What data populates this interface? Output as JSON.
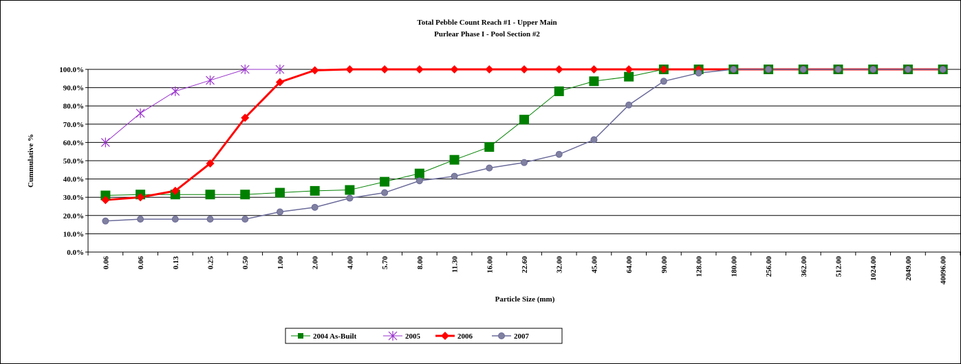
{
  "chart_data": {
    "type": "line",
    "title": "Total Pebble Count Reach #1 - Upper Main",
    "subtitle": "Purlear Phase I - Pool  Section #2",
    "x_label": "Particle Size (mm)",
    "y_label": "Cummulative %",
    "categories": [
      "0.06",
      "0.06",
      "0.13",
      "0.25",
      "0.50",
      "1.00",
      "2.00",
      "4.00",
      "5.70",
      "8.00",
      "11.30",
      "16.00",
      "22.60",
      "32.00",
      "45.00",
      "64.00",
      "90.00",
      "128.00",
      "180.00",
      "256.00",
      "362.00",
      "512.00",
      "1024.00",
      "2049.00",
      "40096.00"
    ],
    "series": [
      {
        "name": "2004 As-Built",
        "color": "#008000",
        "marker": "square",
        "values": [
          31,
          31.5,
          31.5,
          31.5,
          31.5,
          32.5,
          33.5,
          34,
          38.5,
          43,
          50.5,
          57.5,
          72.5,
          88,
          93.5,
          96,
          100,
          100,
          100,
          100,
          100,
          100,
          100,
          100,
          100
        ]
      },
      {
        "name": "2005",
        "color": "#9932cc",
        "marker": "star",
        "values": [
          60,
          76,
          88,
          94,
          100,
          100,
          null,
          null,
          null,
          null,
          null,
          null,
          null,
          null,
          null,
          null,
          null,
          null,
          null,
          null,
          null,
          null,
          null,
          null,
          null
        ]
      },
      {
        "name": "2006",
        "color": "#ff0000",
        "marker": "diamond",
        "values": [
          28.5,
          30,
          33.5,
          48.5,
          73.5,
          93,
          99.5,
          100,
          100,
          100,
          100,
          100,
          100,
          100,
          100,
          100,
          100,
          100,
          100,
          100,
          100,
          100,
          100,
          100,
          100
        ]
      },
      {
        "name": "2007",
        "color": "#6a6a9a",
        "marker": "circle",
        "values": [
          17,
          18,
          18,
          18,
          18,
          22,
          24.5,
          29.5,
          32.5,
          39,
          41.5,
          46,
          49,
          53.5,
          61.5,
          80.5,
          93.5,
          98,
          100,
          100,
          100,
          100,
          100,
          100,
          100
        ]
      }
    ],
    "ylim": [
      0,
      100
    ],
    "yticks": [
      {
        "value": 0,
        "label": "0.0%"
      },
      {
        "value": 10,
        "label": "10.0%"
      },
      {
        "value": 20,
        "label": "20.0%"
      },
      {
        "value": 30,
        "label": "30.0%"
      },
      {
        "value": 40,
        "label": "40.0%"
      },
      {
        "value": 50,
        "label": "50.0%"
      },
      {
        "value": 60,
        "label": "60.0%"
      },
      {
        "value": 70,
        "label": "70.0%"
      },
      {
        "value": 80,
        "label": "80.0%"
      },
      {
        "value": 90,
        "label": "90.0%"
      },
      {
        "value": 100,
        "label": "100.0%"
      }
    ],
    "grid": true,
    "legend": "bottom"
  }
}
